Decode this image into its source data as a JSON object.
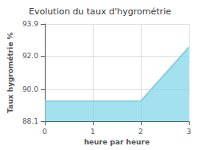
{
  "chart_data": {
    "type": "area",
    "title": "Evolution du taux d'hygrométrie",
    "xlabel": "heure par heure",
    "ylabel": "Taux hygrométrie %",
    "x": [
      0,
      2,
      3
    ],
    "values": [
      89.3,
      89.3,
      92.5
    ],
    "color": "#7dd4e8",
    "xlim": [
      0,
      3
    ],
    "ylim": [
      88.1,
      93.9
    ],
    "xticks": [
      0,
      1,
      2,
      3
    ],
    "yticks": [
      88.1,
      {
        "value": 90.0,
        "label": "90.0"
      },
      {
        "value": 92.0,
        "label": "92.0"
      },
      93.9
    ],
    "grid": true
  }
}
